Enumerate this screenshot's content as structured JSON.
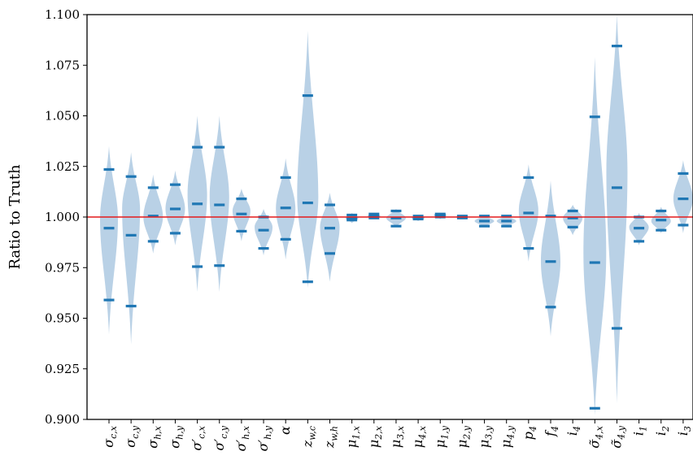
{
  "chart_data": {
    "type": "violin",
    "ylabel": "Ratio to Truth",
    "ylim": [
      0.9,
      1.1
    ],
    "yticks": [
      {
        "value": 0.9,
        "label": "0.900"
      },
      {
        "value": 0.925,
        "label": "0.925"
      },
      {
        "value": 0.95,
        "label": "0.950"
      },
      {
        "value": 0.975,
        "label": "0.975"
      },
      {
        "value": 1.0,
        "label": "1.000"
      },
      {
        "value": 1.025,
        "label": "1.025"
      },
      {
        "value": 1.05,
        "label": "1.050"
      },
      {
        "value": 1.075,
        "label": "1.075"
      },
      {
        "value": 1.1,
        "label": "1.100"
      }
    ],
    "reference_line": {
      "value": 1.0,
      "color": "#e41a1c"
    },
    "colors": {
      "violin_fill": "#b5cfe5",
      "marker": "#1f77b4",
      "axis": "#000000"
    },
    "categories": [
      {
        "base": "σ",
        "sub": "c,x",
        "label": "σc,x",
        "low": 0.959,
        "median": 0.9945,
        "high": 1.0235,
        "ext_low": 0.942,
        "ext_high": 1.035,
        "mode": 0.999,
        "halfwidth": 11
      },
      {
        "base": "σ",
        "sub": "c,y",
        "label": "σc,y",
        "low": 0.956,
        "median": 0.991,
        "high": 1.02,
        "ext_low": 0.937,
        "ext_high": 1.032,
        "mode": 1.004,
        "halfwidth": 11
      },
      {
        "base": "σ",
        "sub": "h,x",
        "label": "σh,x",
        "low": 0.988,
        "median": 1.0005,
        "high": 1.0145,
        "ext_low": 0.982,
        "ext_high": 1.021,
        "mode": 1.0,
        "halfwidth": 12
      },
      {
        "base": "σ",
        "sub": "h,y",
        "label": "σh,y",
        "low": 0.992,
        "median": 1.004,
        "high": 1.016,
        "ext_low": 0.986,
        "ext_high": 1.023,
        "mode": 1.004,
        "halfwidth": 12
      },
      {
        "base": "σ′",
        "sub": "c,x",
        "label": "σ′c,x",
        "low": 0.9755,
        "median": 1.0065,
        "high": 1.0345,
        "ext_low": 0.963,
        "ext_high": 1.05,
        "mode": 1.011,
        "halfwidth": 12
      },
      {
        "base": "σ′",
        "sub": "c,y",
        "label": "σ′c,y",
        "low": 0.976,
        "median": 1.006,
        "high": 1.0345,
        "ext_low": 0.963,
        "ext_high": 1.05,
        "mode": 1.01,
        "halfwidth": 12
      },
      {
        "base": "σ′",
        "sub": "h,x",
        "label": "σ′h,x",
        "low": 0.993,
        "median": 1.0015,
        "high": 1.009,
        "ext_low": 0.988,
        "ext_high": 1.014,
        "mode": 1.003,
        "halfwidth": 11
      },
      {
        "base": "σ′",
        "sub": "h,y",
        "label": "σ′h,y",
        "low": 0.9845,
        "median": 0.9935,
        "high": 1.0,
        "ext_low": 0.981,
        "ext_high": 1.004,
        "mode": 0.995,
        "halfwidth": 11
      },
      {
        "base": "α",
        "sub": "",
        "label": "α",
        "low": 0.989,
        "median": 1.0045,
        "high": 1.0195,
        "ext_low": 0.979,
        "ext_high": 1.029,
        "mode": 1.004,
        "halfwidth": 12
      },
      {
        "base": "z",
        "sub": "w,c",
        "label": "zw,c",
        "low": 0.968,
        "median": 1.007,
        "high": 1.06,
        "ext_low": 0.965,
        "ext_high": 1.092,
        "mode": 1.01,
        "halfwidth": 13
      },
      {
        "base": "z",
        "sub": "w,h",
        "label": "zw,h",
        "low": 0.982,
        "median": 0.9945,
        "high": 1.006,
        "ext_low": 0.968,
        "ext_high": 1.012,
        "mode": 0.995,
        "halfwidth": 12
      },
      {
        "base": "μ",
        "sub": "1,x",
        "label": "μ1,x",
        "low": 0.9985,
        "median": 0.9995,
        "high": 1.001,
        "ext_low": 0.997,
        "ext_high": 1.002,
        "mode": 0.9995,
        "halfwidth": 8
      },
      {
        "base": "μ",
        "sub": "2,x",
        "label": "μ2,x",
        "low": 0.9995,
        "median": 1.0005,
        "high": 1.0015,
        "ext_low": 0.999,
        "ext_high": 1.002,
        "mode": 1.0005,
        "halfwidth": 8
      },
      {
        "base": "μ",
        "sub": "3,x",
        "label": "μ3,x",
        "low": 0.9955,
        "median": 0.9995,
        "high": 1.003,
        "ext_low": 0.995,
        "ext_high": 1.004,
        "mode": 0.9995,
        "halfwidth": 12
      },
      {
        "base": "μ",
        "sub": "4,x",
        "label": "μ4,x",
        "low": 0.999,
        "median": 0.9995,
        "high": 1.0005,
        "ext_low": 0.998,
        "ext_high": 1.001,
        "mode": 0.9995,
        "halfwidth": 8
      },
      {
        "base": "μ",
        "sub": "1,y",
        "label": "μ1,y",
        "low": 1.0,
        "median": 1.001,
        "high": 1.0015,
        "ext_low": 0.999,
        "ext_high": 1.002,
        "mode": 1.001,
        "halfwidth": 8
      },
      {
        "base": "μ",
        "sub": "2,y",
        "label": "μ2,y",
        "low": 0.9995,
        "median": 1.0,
        "high": 1.0005,
        "ext_low": 0.999,
        "ext_high": 1.001,
        "mode": 1.0,
        "halfwidth": 8
      },
      {
        "base": "μ",
        "sub": "3,y",
        "label": "μ3,y",
        "low": 0.9955,
        "median": 0.998,
        "high": 1.0005,
        "ext_low": 0.995,
        "ext_high": 1.001,
        "mode": 0.998,
        "halfwidth": 12
      },
      {
        "base": "μ",
        "sub": "4,y",
        "label": "μ4,y",
        "low": 0.9955,
        "median": 0.998,
        "high": 1.0005,
        "ext_low": 0.995,
        "ext_high": 1.001,
        "mode": 0.998,
        "halfwidth": 12
      },
      {
        "base": "p",
        "sub": "4",
        "label": "p4",
        "low": 0.9845,
        "median": 1.002,
        "high": 1.0195,
        "ext_low": 0.978,
        "ext_high": 1.026,
        "mode": 1.003,
        "halfwidth": 12
      },
      {
        "base": "f",
        "sub": "4",
        "label": "f4",
        "low": 0.9555,
        "median": 0.978,
        "high": 1.0005,
        "ext_low": 0.941,
        "ext_high": 1.018,
        "mode": 0.978,
        "halfwidth": 12
      },
      {
        "base": "i",
        "sub": "4",
        "label": "i4",
        "low": 0.995,
        "median": 0.9995,
        "high": 1.003,
        "ext_low": 0.991,
        "ext_high": 1.006,
        "mode": 0.9995,
        "halfwidth": 12
      },
      {
        "base": "σ̃",
        "sub": "4,x",
        "label": "σ̃4,x",
        "low": 0.9055,
        "median": 0.9775,
        "high": 1.0495,
        "ext_low": 0.902,
        "ext_high": 1.079,
        "mode": 0.982,
        "halfwidth": 14
      },
      {
        "base": "σ̃",
        "sub": "4,y",
        "label": "σ̃4,y",
        "low": 0.945,
        "median": 1.0145,
        "high": 1.0845,
        "ext_low": 0.908,
        "ext_high": 1.1,
        "mode": 1.022,
        "halfwidth": 13
      },
      {
        "base": "i",
        "sub": "1",
        "label": "i1",
        "low": 0.988,
        "median": 0.9945,
        "high": 1.0,
        "ext_low": 0.986,
        "ext_high": 1.002,
        "mode": 0.995,
        "halfwidth": 12
      },
      {
        "base": "i",
        "sub": "2",
        "label": "i2",
        "low": 0.9935,
        "median": 0.9985,
        "high": 1.003,
        "ext_low": 0.992,
        "ext_high": 1.005,
        "mode": 0.998,
        "halfwidth": 12
      },
      {
        "base": "i",
        "sub": "3",
        "label": "i3",
        "low": 0.996,
        "median": 1.009,
        "high": 1.0215,
        "ext_low": 0.992,
        "ext_high": 1.028,
        "mode": 1.009,
        "halfwidth": 12
      }
    ]
  }
}
